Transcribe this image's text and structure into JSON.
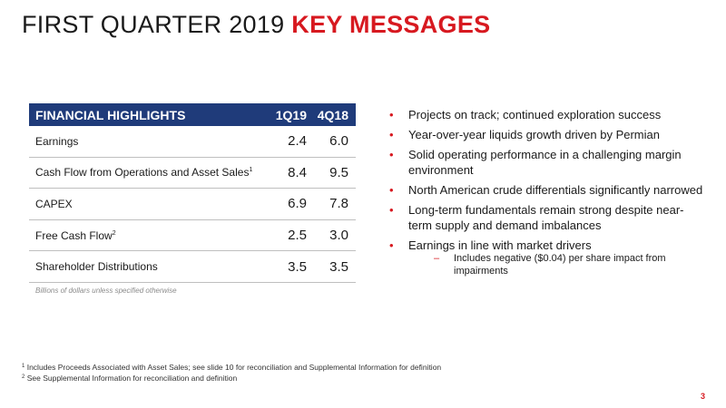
{
  "title": {
    "plain": "FIRST QUARTER 2019 ",
    "accent": "KEY MESSAGES"
  },
  "table": {
    "header": {
      "label": "FINANCIAL HIGHLIGHTS",
      "col1": "1Q19",
      "col2": "4Q18"
    },
    "rows": [
      {
        "label": "Earnings",
        "sup": "",
        "v1": "2.4",
        "v2": "6.0"
      },
      {
        "label": "Cash Flow from Operations and Asset Sales",
        "sup": "1",
        "v1": "8.4",
        "v2": "9.5"
      },
      {
        "label": "CAPEX",
        "sup": "",
        "v1": "6.9",
        "v2": "7.8"
      },
      {
        "label": "Free Cash Flow",
        "sup": "2",
        "v1": "2.5",
        "v2": "3.0"
      },
      {
        "label": "Shareholder Distributions",
        "sup": "",
        "v1": "3.5",
        "v2": "3.5"
      }
    ],
    "note": "Billions of dollars unless specified otherwise"
  },
  "bullets": [
    "Projects on track; continued exploration success",
    "Year-over-year liquids growth driven by Permian",
    "Solid operating performance in a challenging margin environment",
    "North American crude differentials significantly narrowed",
    "Long-term fundamentals remain strong despite near-term supply and demand imbalances",
    "Earnings in line with market drivers"
  ],
  "sub_bullet": "Includes negative ($0.04) per share impact from impairments",
  "footnotes": [
    {
      "sup": "1",
      "text": "Includes Proceeds Associated with Asset Sales; see slide 10 for reconciliation and Supplemental Information for definition"
    },
    {
      "sup": "2",
      "text": "See Supplemental Information for reconciliation and definition"
    }
  ],
  "page_number": "3",
  "colors": {
    "accent": "#d71920",
    "table_header": "#1f3b7a"
  }
}
